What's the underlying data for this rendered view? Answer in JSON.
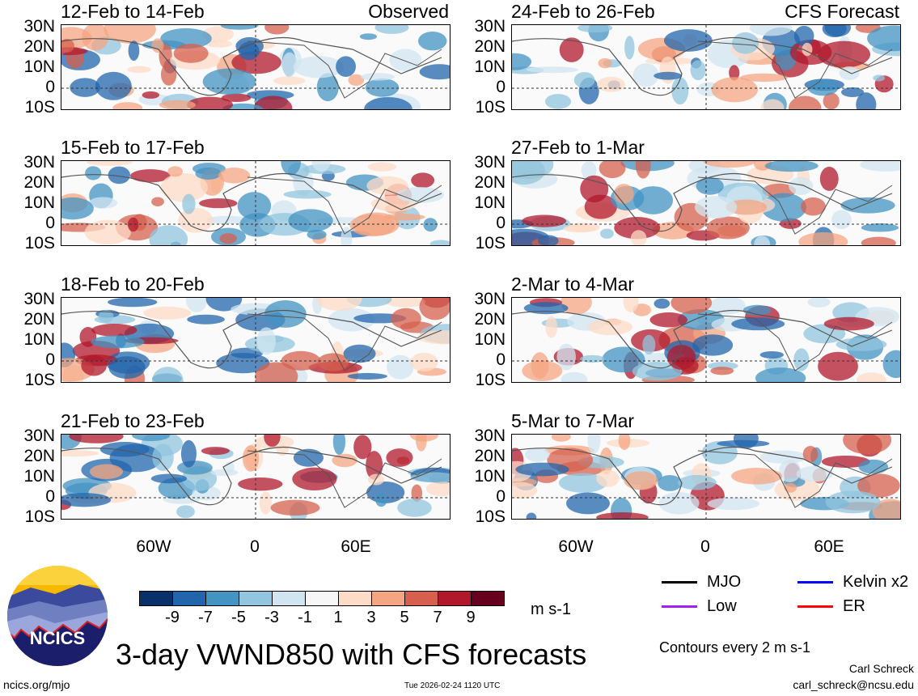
{
  "panels_left": [
    {
      "dates": "12-Feb to 14-Feb",
      "label": "Observed"
    },
    {
      "dates": "15-Feb to 17-Feb",
      "label": ""
    },
    {
      "dates": "18-Feb to 20-Feb",
      "label": ""
    },
    {
      "dates": "21-Feb to 23-Feb",
      "label": ""
    }
  ],
  "panels_right": [
    {
      "dates": "24-Feb to 26-Feb",
      "label": "CFS Forecast"
    },
    {
      "dates": "27-Feb to 1-Mar",
      "label": ""
    },
    {
      "dates": "2-Mar to 4-Mar",
      "label": ""
    },
    {
      "dates": "5-Mar to 7-Mar",
      "label": ""
    }
  ],
  "lat_labels": [
    "30N",
    "20N",
    "10N",
    "0",
    "10S"
  ],
  "lon_labels": [
    "60W",
    "0",
    "60E"
  ],
  "colorbar": {
    "colors": [
      "#08306b",
      "#2166ac",
      "#4393c3",
      "#92c5de",
      "#d1e5f0",
      "#f7f7f7",
      "#fddbc7",
      "#f4a582",
      "#d6604d",
      "#b2182b",
      "#67001f"
    ],
    "ticks": [
      "-9",
      "-7",
      "-5",
      "-3",
      "-1",
      "1",
      "3",
      "5",
      "7",
      "9"
    ],
    "units": "m s-1"
  },
  "legend": [
    {
      "label": "MJO",
      "color": "#000000"
    },
    {
      "label": "Kelvin x2",
      "color": "#0000ff"
    },
    {
      "label": "Low",
      "color": "#a020f0"
    },
    {
      "label": "ER",
      "color": "#ff0000"
    }
  ],
  "contours_note": "Contours every 2 m s-1",
  "title": "3-day VWND850 with CFS forecasts",
  "logo_text": "NCICS",
  "url": "ncics.org/mjo",
  "timestamp": "Tue 2026-02-24 1120 UTC",
  "author": "Carl Schreck",
  "email": "carl_schreck@ncsu.edu"
}
